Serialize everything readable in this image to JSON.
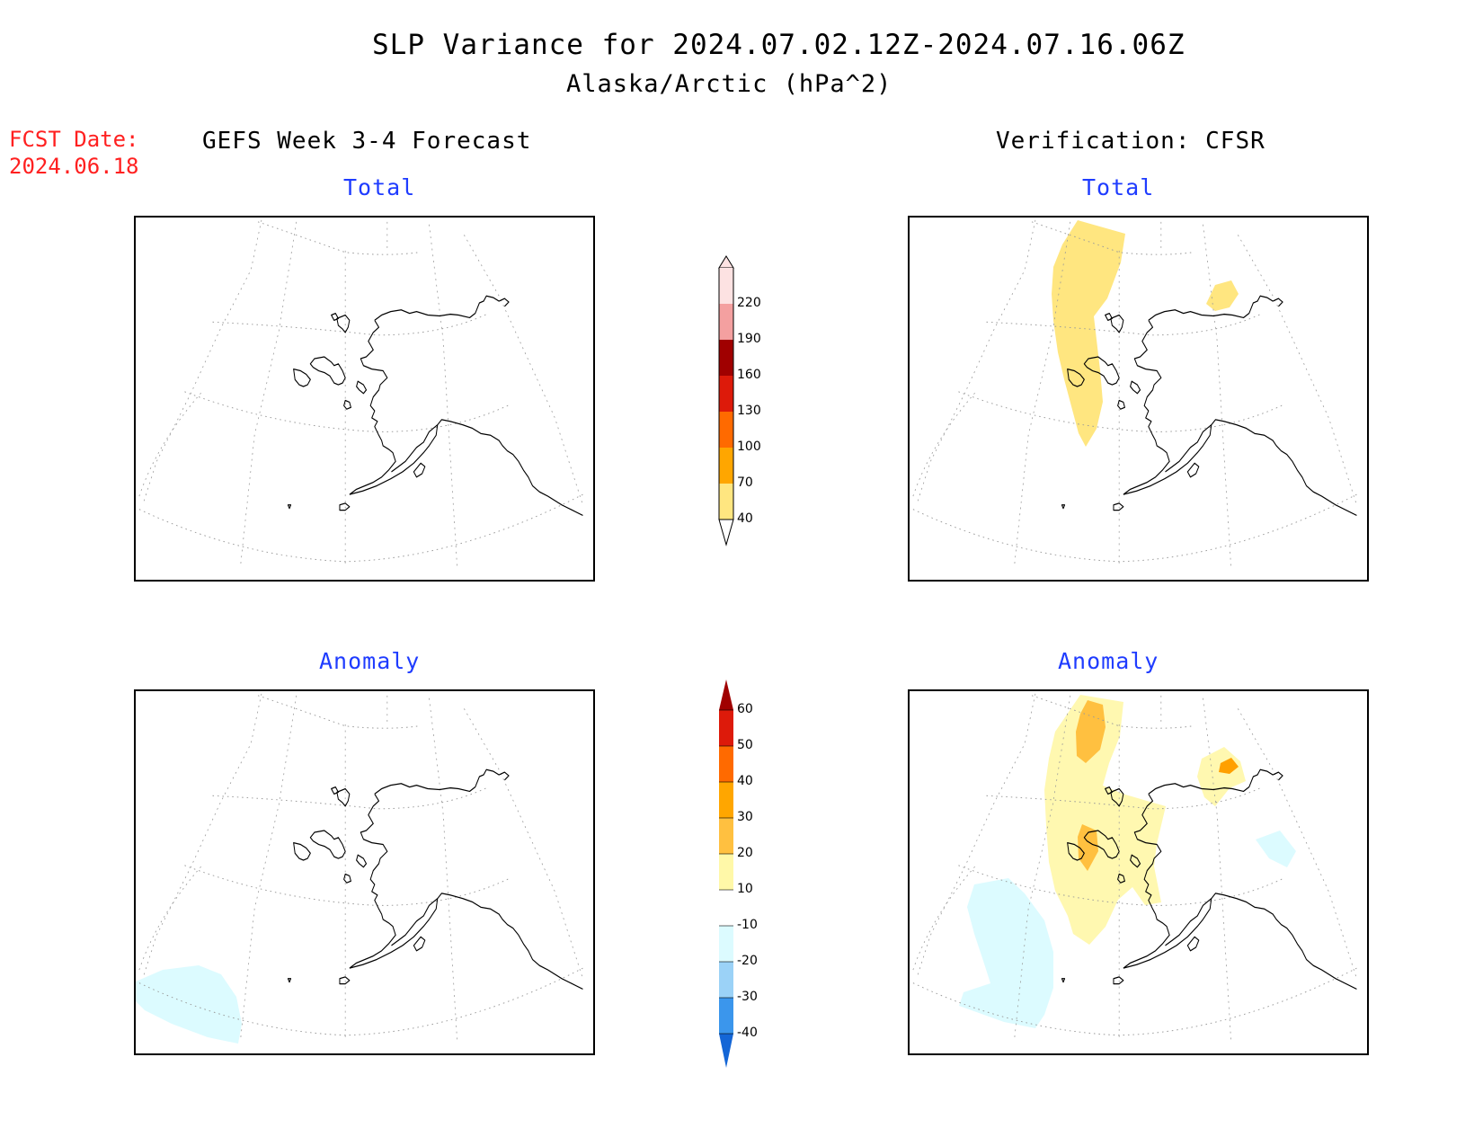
{
  "header": {
    "title": "SLP Variance for 2024.07.02.12Z-2024.07.16.06Z",
    "subtitle": "Alaska/Arctic (hPa^2)"
  },
  "forecast_date": {
    "label": "FCST Date:",
    "value": "2024.06.18"
  },
  "columns": {
    "left_title": "GEFS Week 3-4 Forecast",
    "right_title": "Verification: CFSR"
  },
  "panels": {
    "top_left": "Total",
    "top_right": "Total",
    "bottom_left": "Anomaly",
    "bottom_right": "Anomaly"
  },
  "colorbar_total": {
    "labels": [
      "220",
      "190",
      "160",
      "130",
      "100",
      "70",
      "40"
    ],
    "colors": [
      "#fde2e2",
      "#f4a0a0",
      "#a00000",
      "#dd1a0a",
      "#ff6a00",
      "#ffa600",
      "#ffe680"
    ]
  },
  "colorbar_anomaly": {
    "labels": [
      "60",
      "50",
      "40",
      "30",
      "20",
      "10",
      "-10",
      "-20",
      "-30",
      "-40"
    ],
    "colors": [
      "#a00000",
      "#dd1a0a",
      "#ff6a00",
      "#ffa600",
      "#ffc040",
      "#fff8a8",
      "#ffffff",
      "#dcfbff",
      "#9bd2f7",
      "#3b96ec",
      "#1466d6"
    ]
  },
  "colors": {
    "total_40_70": "#ffe680",
    "anomaly_10_20": "#fff8b0",
    "anomaly_20_30": "#ffc040",
    "anomaly_30_40": "#ffa000",
    "anomaly_neg_10_20": "#dcfbff",
    "title_blue": "#1f3cff",
    "fcst_red": "#ff2020"
  }
}
